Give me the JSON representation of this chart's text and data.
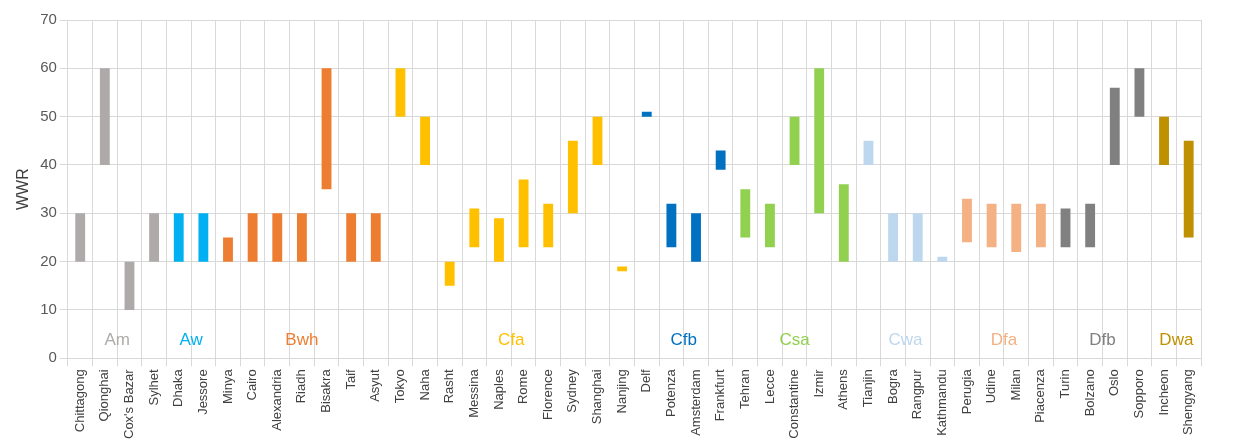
{
  "chart_data": {
    "type": "bar",
    "ylabel": "WWR",
    "categories": [
      "Chittagong",
      "Qionghai",
      "Cox's Bazar",
      "Sylhet",
      "Dhaka",
      "Jessore",
      "Minya",
      "Cairo",
      "Alexandria",
      "Riadh",
      "Bisakra",
      "Taif",
      "Asyut",
      "Tokyo",
      "Naha",
      "Rasht",
      "Messina",
      "Naples",
      "Rome",
      "Florence",
      "Sydney",
      "Shanghai",
      "Nanjing",
      "Delf",
      "Potenza",
      "Amsterdam",
      "Frankfurt",
      "Tehran",
      "Lecce",
      "Constantine",
      "Izmir",
      "Athens",
      "Tianjin",
      "Bogra",
      "Rangpur",
      "Kathmandu",
      "Perugia",
      "Udine",
      "Milan",
      "Piacenza",
      "Turin",
      "Bolzano",
      "Oslo",
      "Sopporo",
      "Incheon",
      "Shengyang"
    ],
    "base": [
      20,
      40,
      10,
      20,
      20,
      20,
      20,
      20,
      20,
      20,
      35,
      20,
      20,
      50,
      40,
      15,
      23,
      20,
      23,
      23,
      30,
      40,
      18,
      50,
      23,
      20,
      39,
      25,
      23,
      40,
      30,
      20,
      40,
      20,
      20,
      20,
      24,
      23,
      22,
      23,
      23,
      23,
      40,
      50,
      40,
      25
    ],
    "values": [
      10,
      20,
      10,
      10,
      10,
      10,
      5,
      10,
      10,
      10,
      25,
      10,
      10,
      10,
      10,
      5,
      8,
      9,
      14,
      9,
      15,
      10,
      1,
      1,
      9,
      10,
      4,
      10,
      9,
      10,
      30,
      16,
      5,
      10,
      10,
      1,
      9,
      9,
      10,
      9,
      8,
      9,
      16,
      10,
      10,
      20
    ],
    "colors": [
      "#aeaaaa",
      "#aeaaaa",
      "#aeaaaa",
      "#aeaaaa",
      "#00b0f0",
      "#00b0f0",
      "#ed7d31",
      "#ed7d31",
      "#ed7d31",
      "#ed7d31",
      "#ed7d31",
      "#ed7d31",
      "#ed7d31",
      "#ffc000",
      "#ffc000",
      "#ffc000",
      "#ffc000",
      "#ffc000",
      "#ffc000",
      "#ffc000",
      "#ffc000",
      "#ffc000",
      "#ffc000",
      "#0070c0",
      "#0070c0",
      "#0070c0",
      "#0070c0",
      "#92d050",
      "#92d050",
      "#92d050",
      "#92d050",
      "#92d050",
      "#bdd7ee",
      "#bdd7ee",
      "#bdd7ee",
      "#bdd7ee",
      "#f4b183",
      "#f4b183",
      "#f4b183",
      "#f4b183",
      "#808080",
      "#808080",
      "#808080",
      "#808080",
      "#bf9000",
      "#bf9000"
    ],
    "ylim": [
      0,
      70
    ],
    "yticks": [
      0,
      10,
      20,
      30,
      40,
      50,
      60,
      70
    ],
    "grid": true,
    "legend": false,
    "annotations": [
      "Am",
      "Aw",
      "Bwh",
      "Cfa",
      "Cfb",
      "Csa",
      "Cwa",
      "Dfa",
      "Dfb",
      "Dwa"
    ]
  }
}
